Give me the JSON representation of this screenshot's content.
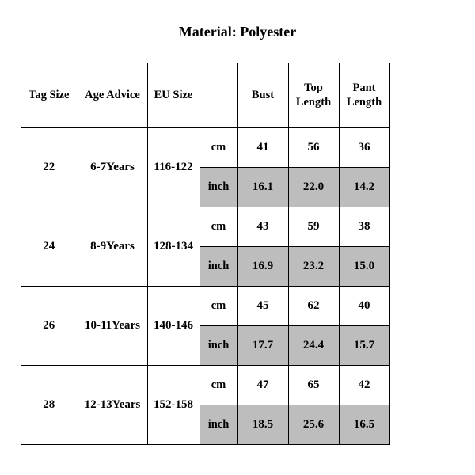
{
  "title": "Material: Polyester",
  "columns": {
    "tag": "Tag Size",
    "age": "Age Advice",
    "eu": "EU Size",
    "bust": "Bust",
    "top": "Top Length",
    "pant": "Pant Length"
  },
  "units": {
    "cm": "cm",
    "inch": "inch"
  },
  "shaded_bg": "#bdbdbd",
  "rows": [
    {
      "tag": "22",
      "age": "6-7Years",
      "eu": "116-122",
      "cm": {
        "bust": "41",
        "top": "56",
        "pant": "36"
      },
      "inch": {
        "bust": "16.1",
        "top": "22.0",
        "pant": "14.2"
      }
    },
    {
      "tag": "24",
      "age": "8-9Years",
      "eu": "128-134",
      "cm": {
        "bust": "43",
        "top": "59",
        "pant": "38"
      },
      "inch": {
        "bust": "16.9",
        "top": "23.2",
        "pant": "15.0"
      }
    },
    {
      "tag": "26",
      "age": "10-11Years",
      "eu": "140-146",
      "cm": {
        "bust": "45",
        "top": "62",
        "pant": "40"
      },
      "inch": {
        "bust": "17.7",
        "top": "24.4",
        "pant": "15.7"
      }
    },
    {
      "tag": "28",
      "age": "12-13Years",
      "eu": "152-158",
      "cm": {
        "bust": "47",
        "top": "65",
        "pant": "42"
      },
      "inch": {
        "bust": "18.5",
        "top": "25.6",
        "pant": "16.5"
      }
    }
  ],
  "style": {
    "font_family": "Times New Roman",
    "title_fontsize_pt": 18,
    "cell_fontsize_pt": 15,
    "border_color": "#000000",
    "background_color": "#ffffff",
    "text_color": "#000000"
  }
}
